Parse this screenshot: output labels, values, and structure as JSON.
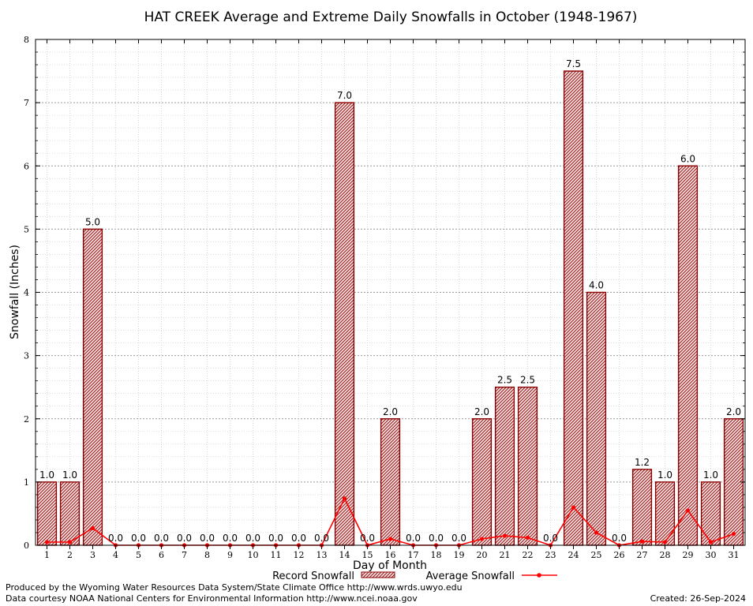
{
  "chart_data": {
    "type": "bar",
    "title": "HAT CREEK Average and Extreme Daily Snowfalls in October (1948-1967)",
    "xlabel": "Day of Month",
    "ylabel": "Snowfall (Inches)",
    "ylim": [
      0,
      8
    ],
    "yticks": [
      "0",
      "1",
      "2",
      "3",
      "4",
      "5",
      "6",
      "7",
      "8"
    ],
    "categories": [
      "1",
      "2",
      "3",
      "4",
      "5",
      "6",
      "7",
      "8",
      "9",
      "10",
      "11",
      "12",
      "13",
      "14",
      "15",
      "16",
      "17",
      "18",
      "19",
      "20",
      "21",
      "22",
      "23",
      "24",
      "25",
      "26",
      "27",
      "28",
      "29",
      "30",
      "31"
    ],
    "series": [
      {
        "name": "Record Snowfall",
        "kind": "bar",
        "color": "#8b0000",
        "values": [
          1.0,
          1.0,
          5.0,
          0.0,
          0.0,
          0.0,
          0.0,
          0.0,
          0.0,
          0.0,
          0.0,
          0.0,
          0.0,
          7.0,
          0.0,
          2.0,
          0.0,
          0.0,
          0.0,
          2.0,
          2.5,
          2.5,
          0.0,
          7.5,
          4.0,
          0.0,
          1.2,
          1.0,
          6.0,
          1.0,
          2.0
        ],
        "labels": [
          "1.0",
          "1.0",
          "5.0",
          "0.0",
          "0.0",
          "0.0",
          "0.0",
          "0.0",
          "0.0",
          "0.0",
          "0.0",
          "0.0",
          "0.0",
          "7.0",
          "0.0",
          "2.0",
          "0.0",
          "0.0",
          "0.0",
          "2.0",
          "2.5",
          "2.5",
          "0.0",
          "7.5",
          "4.0",
          "0.0",
          "1.2",
          "1.0",
          "6.0",
          "1.0",
          "2.0"
        ]
      },
      {
        "name": "Average Snowfall",
        "kind": "line",
        "color": "#ff0000",
        "values": [
          0.05,
          0.05,
          0.27,
          0.0,
          0.0,
          0.0,
          0.0,
          0.0,
          0.0,
          0.0,
          0.0,
          0.0,
          0.0,
          0.74,
          0.0,
          0.1,
          0.0,
          0.0,
          0.0,
          0.1,
          0.15,
          0.12,
          0.0,
          0.6,
          0.2,
          0.0,
          0.06,
          0.05,
          0.55,
          0.05,
          0.18
        ]
      }
    ],
    "grid": true,
    "legend_position": "bottom"
  },
  "footer": {
    "left_line1": "Produced by the Wyoming Water Resources Data System/State Climate Office http://www.wrds.uwyo.edu",
    "left_line2": "Data courtesy NOAA National Centers for Environmental Information http://www.ncei.noaa.gov",
    "right": "Created:  26-Sep-2024"
  }
}
